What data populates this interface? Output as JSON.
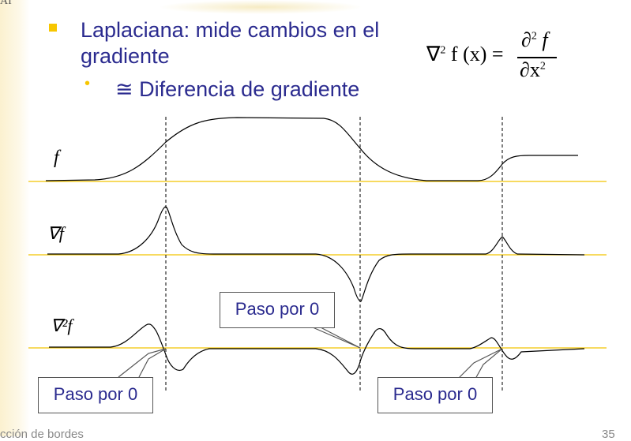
{
  "header": {
    "corner_letter": "AI"
  },
  "bullets": [
    {
      "text": "Laplaciana: mide cambios en el gradiente"
    },
    {
      "text": "≅ Diferencia de gradiente"
    }
  ],
  "formula": {
    "lhs_nabla": "∇",
    "lhs_exp": "2",
    "lhs_rest": " f (x) =",
    "numerator": "∂",
    "numerator_exp": "2",
    "numerator_f": " f",
    "denominator": "∂x",
    "denominator_exp": "2"
  },
  "plot_labels": {
    "f": "f",
    "grad_f": "∇f",
    "laplacian_f": "∇²f"
  },
  "callouts": [
    {
      "label": "Paso por 0"
    },
    {
      "label": "Paso por 0"
    },
    {
      "label": "Paso por 0"
    }
  ],
  "footer": {
    "left": "cción de bordes",
    "right": "35"
  },
  "colors": {
    "text": "#2b2b8f",
    "bullet": "#f7c600",
    "axis": "#f2c400"
  }
}
